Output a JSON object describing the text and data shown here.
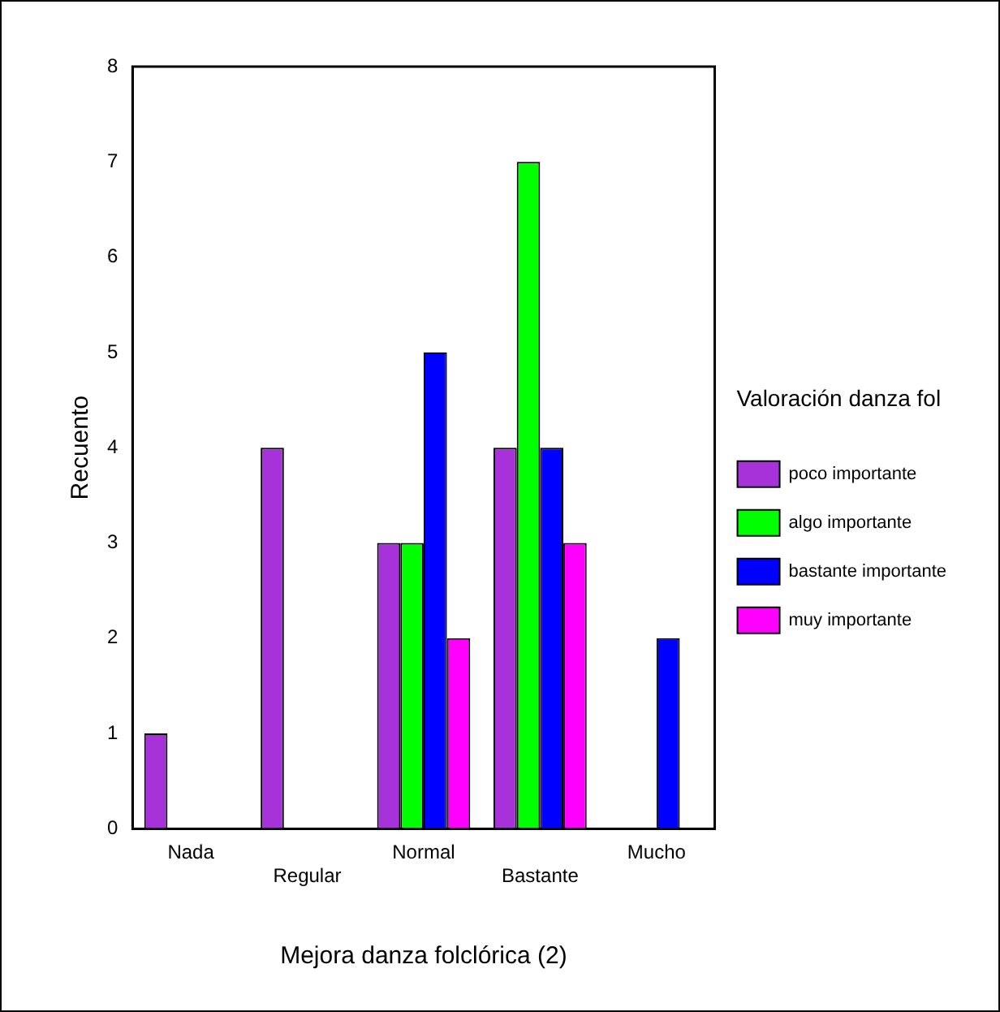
{
  "chart_data": {
    "type": "bar",
    "xlabel": "Mejora danza folclórica (2)",
    "ylabel": "Recuento",
    "legend_title": "Valoración danza fol",
    "categories": [
      "Nada",
      "Regular",
      "Normal",
      "Bastante",
      "Mucho"
    ],
    "series": [
      {
        "name": "poco importante",
        "color": "#a832d9",
        "values": [
          1,
          4,
          3,
          4,
          0
        ]
      },
      {
        "name": "algo importante",
        "color": "#00ff00",
        "values": [
          0,
          0,
          3,
          7,
          0
        ]
      },
      {
        "name": "bastante importante",
        "color": "#0000ff",
        "values": [
          0,
          0,
          5,
          4,
          2
        ]
      },
      {
        "name": "muy importante",
        "color": "#ff00ff",
        "values": [
          0,
          0,
          2,
          3,
          0
        ]
      }
    ],
    "ylim": [
      0,
      8
    ],
    "yticks": [
      0,
      1,
      2,
      3,
      4,
      5,
      6,
      7,
      8
    ],
    "grid": false,
    "legend": "right"
  }
}
